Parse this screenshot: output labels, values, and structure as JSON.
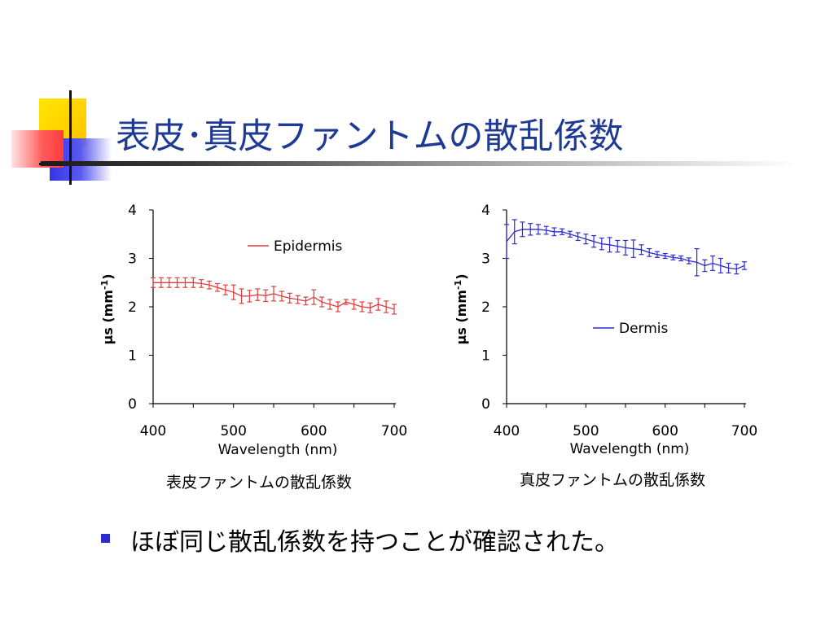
{
  "slide": {
    "title": "表皮･真皮ファントムの散乱係数",
    "bullet": "ほぼ同じ散乱係数を持つことが確認された。"
  },
  "colors": {
    "title": "#1f3a93",
    "epidermis": "#e03c3c",
    "dermis": "#2b2bd0",
    "deco_yellow": "#ffd700",
    "deco_blue": "#3a3af0",
    "deco_red": "#ff4a4a"
  },
  "chart_data": [
    {
      "type": "line",
      "caption": "表皮ファントムの散乱係数",
      "xlabel": "Wavelength (nm)",
      "ylabel_main": "μs (mm",
      "ylabel_sup": "-1",
      "ylabel_end": ")",
      "xlim": [
        400,
        700
      ],
      "ylim": [
        0,
        4
      ],
      "xticks": [
        400,
        500,
        600,
        700
      ],
      "yticks": [
        0,
        1,
        2,
        3,
        4
      ],
      "legend_position": "top-right",
      "series": [
        {
          "name": "Epidermis",
          "color": "#e03c3c",
          "x": [
            400,
            410,
            420,
            430,
            440,
            450,
            460,
            470,
            480,
            490,
            500,
            510,
            520,
            530,
            540,
            550,
            560,
            570,
            580,
            590,
            600,
            610,
            620,
            630,
            640,
            650,
            660,
            670,
            680,
            690,
            700
          ],
          "y": [
            2.5,
            2.5,
            2.5,
            2.5,
            2.5,
            2.5,
            2.48,
            2.45,
            2.4,
            2.35,
            2.3,
            2.22,
            2.22,
            2.25,
            2.23,
            2.27,
            2.22,
            2.18,
            2.15,
            2.12,
            2.2,
            2.1,
            2.05,
            2.0,
            2.1,
            2.05,
            2.0,
            1.98,
            2.05,
            2.0,
            1.95
          ],
          "err": [
            0.1,
            0.1,
            0.1,
            0.1,
            0.1,
            0.1,
            0.08,
            0.08,
            0.08,
            0.1,
            0.15,
            0.15,
            0.12,
            0.12,
            0.12,
            0.15,
            0.1,
            0.1,
            0.08,
            0.08,
            0.15,
            0.1,
            0.1,
            0.1,
            0.05,
            0.1,
            0.1,
            0.1,
            0.12,
            0.12,
            0.1
          ]
        }
      ]
    },
    {
      "type": "line",
      "caption": "真皮ファントムの散乱係数",
      "xlabel": "Wavelength (nm)",
      "ylabel_main": "μs (mm",
      "ylabel_sup": "-1",
      "ylabel_end": ")",
      "xlim": [
        400,
        700
      ],
      "ylim": [
        0,
        4
      ],
      "xticks": [
        400,
        500,
        600,
        700
      ],
      "yticks": [
        0,
        1,
        2,
        3,
        4
      ],
      "legend_position": "center-right",
      "series": [
        {
          "name": "Dermis",
          "color": "#2b2bd0",
          "x": [
            400,
            410,
            420,
            430,
            440,
            450,
            460,
            470,
            480,
            490,
            500,
            510,
            520,
            530,
            540,
            550,
            560,
            570,
            580,
            590,
            600,
            610,
            620,
            630,
            640,
            650,
            660,
            670,
            680,
            690,
            700
          ],
          "y": [
            3.35,
            3.55,
            3.6,
            3.6,
            3.6,
            3.58,
            3.55,
            3.55,
            3.5,
            3.45,
            3.4,
            3.35,
            3.3,
            3.28,
            3.25,
            3.22,
            3.2,
            3.18,
            3.12,
            3.08,
            3.05,
            3.02,
            3.0,
            2.95,
            2.92,
            2.85,
            2.9,
            2.85,
            2.8,
            2.78,
            2.85
          ],
          "err": [
            0.35,
            0.25,
            0.15,
            0.12,
            0.1,
            0.08,
            0.08,
            0.06,
            0.06,
            0.08,
            0.1,
            0.12,
            0.12,
            0.15,
            0.12,
            0.15,
            0.18,
            0.1,
            0.08,
            0.06,
            0.05,
            0.05,
            0.05,
            0.06,
            0.28,
            0.12,
            0.15,
            0.15,
            0.1,
            0.1,
            0.08
          ]
        }
      ]
    }
  ]
}
